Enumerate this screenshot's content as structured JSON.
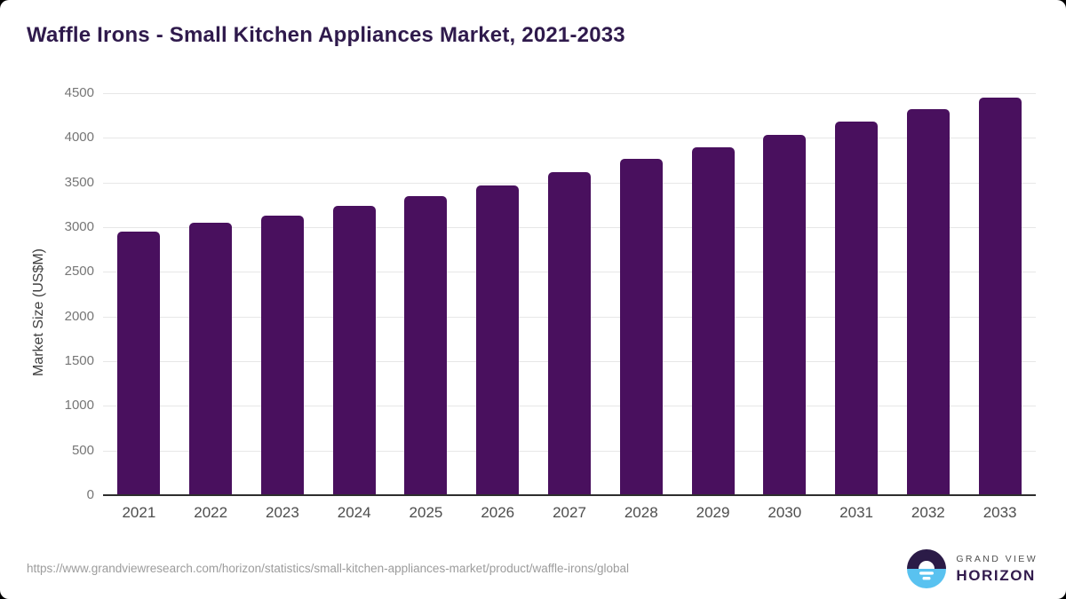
{
  "chart_data": {
    "type": "bar",
    "title": "Waffle Irons - Small Kitchen Appliances Market, 2021-2033",
    "categories": [
      "2021",
      "2022",
      "2023",
      "2024",
      "2025",
      "2026",
      "2027",
      "2028",
      "2029",
      "2030",
      "2031",
      "2032",
      "2033"
    ],
    "values": [
      2950,
      3050,
      3130,
      3240,
      3350,
      3470,
      3620,
      3770,
      3890,
      4030,
      4180,
      4320,
      4450
    ],
    "xlabel": "",
    "ylabel": "Market Size (US$M)",
    "ylim": [
      0,
      4500
    ],
    "yticks": [
      0,
      500,
      1000,
      1500,
      2000,
      2500,
      3000,
      3500,
      4000,
      4500
    ],
    "grid": true,
    "legend": false,
    "bar_color": "#49105E"
  },
  "footer": {
    "source_url": "https://www.grandviewresearch.com/horizon/statistics/small-kitchen-appliances-market/product/waffle-irons/global",
    "brand": {
      "top": "GRAND VIEW",
      "bottom": "HORIZON"
    }
  },
  "colors": {
    "title": "#2F1A4C",
    "bar": "#49105E",
    "axis": "#2E2E2E",
    "gridline": "#E7E7E7",
    "y_tick": "#767676",
    "x_tick": "#4D4D4D",
    "url": "#9C9C9C",
    "logo_dark": "#2B1B47",
    "logo_blue": "#59C2F0",
    "brand_name": "#4F4F4F",
    "brand_horizon": "#321B4D"
  }
}
